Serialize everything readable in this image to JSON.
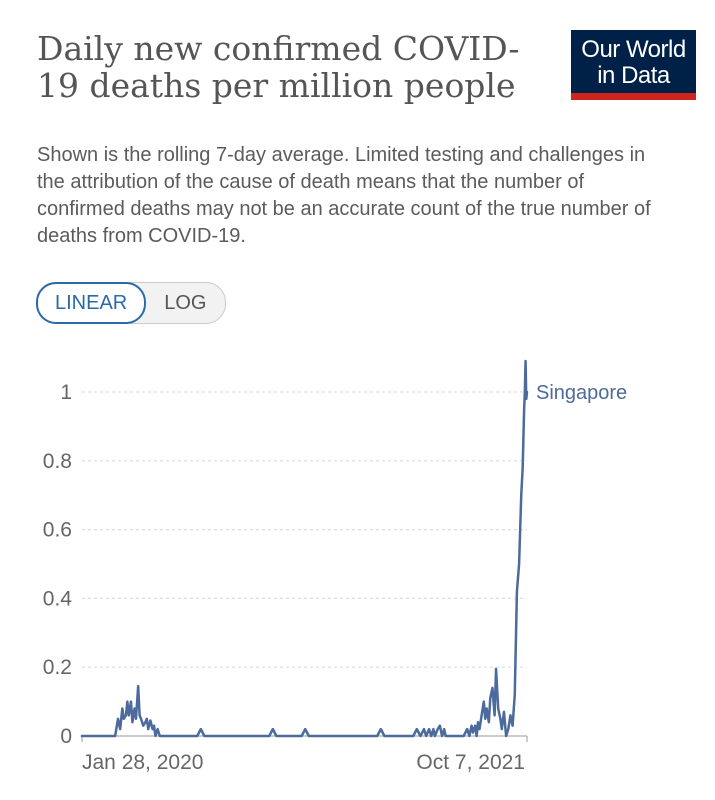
{
  "header": {
    "title": "Daily new confirmed COVID-19 deaths per million people",
    "subtitle": "Shown is the rolling 7-day average. Limited testing and challenges in the attribution of the cause of death means that the number of confirmed deaths may not be an accurate count of the true number of deaths from COVID-19.",
    "logo_line1": "Our World",
    "logo_line2": "in Data"
  },
  "scale_toggle": {
    "linear_label": "LINEAR",
    "log_label": "LOG",
    "selected": "LINEAR"
  },
  "colors": {
    "series": "#4c6a9c",
    "brand_navy": "#002147",
    "brand_red": "#ce261e",
    "toggle_active": "#2b6aa6"
  },
  "chart_data": {
    "type": "line",
    "title": "Daily new confirmed COVID-19 deaths per million people",
    "xlabel": "",
    "ylabel": "",
    "ylim": [
      0,
      1.1
    ],
    "yticks": [
      0,
      0.2,
      0.4,
      0.6,
      0.8,
      1
    ],
    "ytick_labels": [
      "0",
      "0.2",
      "0.4",
      "0.6",
      "0.8",
      "1"
    ],
    "xtick_labels": [
      "Jan 28, 2020",
      "Oct 7, 2021"
    ],
    "xtick_days": [
      0,
      618
    ],
    "xlim_days": [
      0,
      618
    ],
    "grid": true,
    "series": [
      {
        "name": "Singapore",
        "label": "Singapore",
        "x_days": [
          0,
          46,
          50,
          53,
          56,
          58,
          61,
          63,
          65,
          68,
          70,
          73,
          75,
          78,
          80,
          82,
          85,
          88,
          90,
          92,
          95,
          98,
          100,
          102,
          105,
          108,
          160,
          165,
          170,
          260,
          265,
          270,
          305,
          310,
          315,
          410,
          415,
          420,
          460,
          465,
          470,
          475,
          478,
          482,
          485,
          488,
          490,
          494,
          497,
          500,
          503,
          505,
          510,
          530,
          535,
          538,
          541,
          543,
          546,
          548,
          550,
          552,
          555,
          558,
          560,
          562,
          565,
          567,
          570,
          573,
          575,
          578,
          581,
          583,
          586,
          589,
          592,
          595,
          598,
          601,
          604,
          607,
          610,
          612,
          614,
          615,
          616,
          617,
          618
        ],
        "values": [
          0,
          0,
          0.05,
          0.02,
          0.08,
          0.05,
          0.06,
          0.1,
          0.06,
          0.1,
          0.04,
          0.08,
          0.05,
          0.145,
          0.06,
          0.05,
          0.03,
          0.04,
          0.05,
          0.02,
          0.045,
          0.02,
          0.03,
          0.0,
          0.02,
          0,
          0,
          0.02,
          0,
          0,
          0.02,
          0,
          0,
          0.02,
          0,
          0,
          0.02,
          0,
          0,
          0.02,
          0,
          0.02,
          0,
          0.02,
          0,
          0.02,
          0,
          0.02,
          0.03,
          0,
          0.02,
          0,
          0,
          0,
          0.02,
          0,
          0.03,
          0.01,
          0.03,
          0,
          0.04,
          0.02,
          0.06,
          0.1,
          0.05,
          0.08,
          0.04,
          0.11,
          0.14,
          0.06,
          0.195,
          0.08,
          0.05,
          0.02,
          0.07,
          0.0,
          0.02,
          0.06,
          0.03,
          0.12,
          0.42,
          0.5,
          0.7,
          0.78,
          0.95,
          1.0,
          1.09,
          0.98,
          1.0
        ]
      }
    ]
  }
}
